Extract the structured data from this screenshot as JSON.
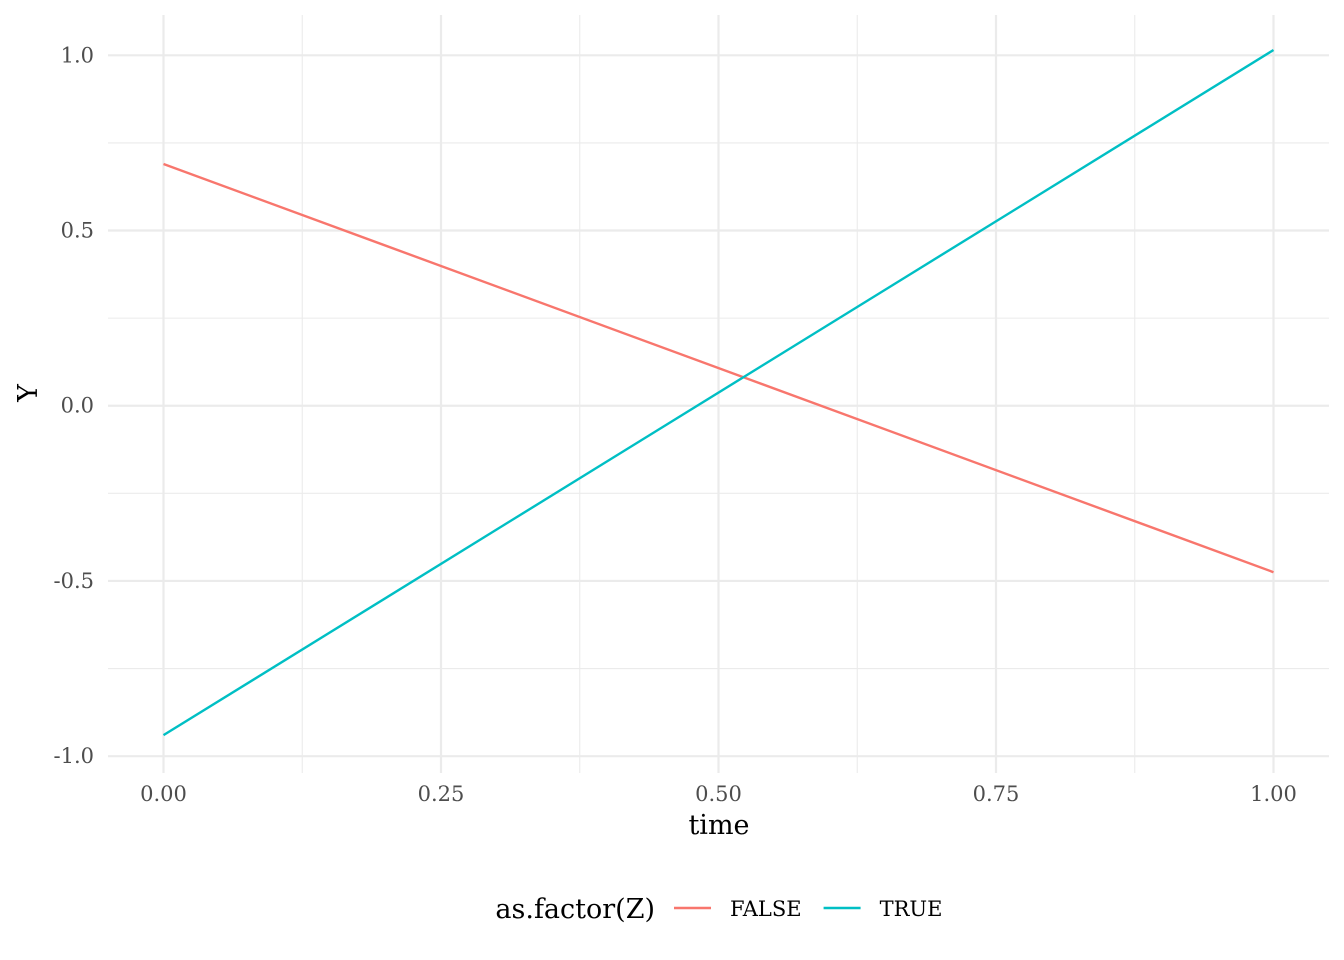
{
  "chart_data": {
    "type": "line",
    "title": "",
    "xlabel": "time",
    "ylabel": "Y",
    "xlim": [
      -0.05,
      1.05
    ],
    "ylim": [
      -1.048,
      1.115
    ],
    "x_ticks": [
      0.0,
      0.25,
      0.5,
      0.75,
      1.0
    ],
    "x_tick_labels": [
      "0.00",
      "0.25",
      "0.50",
      "0.75",
      "1.00"
    ],
    "x_minor_ticks": [
      0.125,
      0.375,
      0.625,
      0.875
    ],
    "y_ticks": [
      -1.0,
      -0.5,
      0.0,
      0.5,
      1.0
    ],
    "y_tick_labels": [
      "-1.0",
      "-0.5",
      "0.0",
      "0.5",
      "1.0"
    ],
    "y_minor_ticks": [
      -0.75,
      -0.25,
      0.25,
      0.75
    ],
    "grid": true,
    "legend": {
      "title": "as.factor(Z)",
      "position": "bottom"
    },
    "series": [
      {
        "name": "FALSE",
        "color": "#F8766D",
        "x": [
          0.0,
          1.0
        ],
        "y": [
          0.69,
          -0.475
        ]
      },
      {
        "name": "TRUE",
        "color": "#00BFC4",
        "x": [
          0.0,
          1.0
        ],
        "y": [
          -0.94,
          1.015
        ]
      }
    ]
  }
}
